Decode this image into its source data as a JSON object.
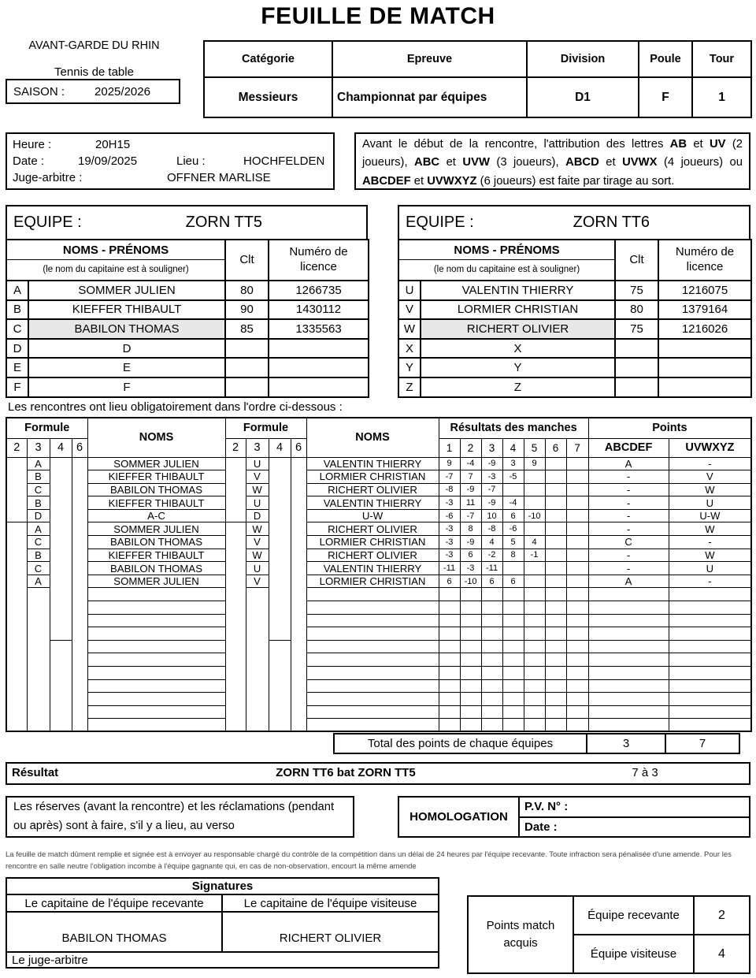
{
  "title": "FEUILLE DE MATCH",
  "club": {
    "name": "AVANT-GARDE DU RHIN",
    "sport": "Tennis de table",
    "season_label": "SAISON :",
    "season": "2025/2026"
  },
  "header_table": {
    "columns": [
      {
        "label": "Catégorie",
        "value": "Messieurs"
      },
      {
        "label": "Epreuve",
        "value": "Championnat par équipes"
      },
      {
        "label": "Division",
        "value": "D1"
      },
      {
        "label": "Poule",
        "value": "F"
      },
      {
        "label": "Tour",
        "value": "1"
      }
    ]
  },
  "info": {
    "heure_label": "Heure :",
    "heure": "20H15",
    "date_label": "Date :",
    "date": "19/09/2025",
    "lieu_label": "Lieu :",
    "lieu": "HOCHFELDEN",
    "juge_label": "Juge-arbitre :",
    "juge": "OFFNER MARLISE"
  },
  "note": {
    "parts": [
      "Avant le début de la rencontre, l'attribution des lettres ",
      "AB",
      " et ",
      "UV",
      " (2 joueurs), ",
      "ABC",
      " et ",
      "UVW",
      " (3 joueurs), ",
      "ABCD",
      " et ",
      "UVWX",
      " (4 joueurs) ou ",
      "ABCDEF",
      " et ",
      "UVWXYZ",
      " (6 joueurs) est faite par tirage au sort."
    ]
  },
  "teams": {
    "home": {
      "equipe_label": "EQUIPE :",
      "name": "ZORN TT5",
      "header": {
        "noms": "NOMS - PRÉNOMS",
        "capitaine": "(le nom du capitaine est à souligner)",
        "clt": "Clt",
        "licence": "Numéro de licence"
      },
      "players": [
        {
          "letter": "A",
          "name": "SOMMER JULIEN",
          "clt": "80",
          "licence": "1266735",
          "shaded": false
        },
        {
          "letter": "B",
          "name": "KIEFFER THIBAULT",
          "clt": "90",
          "licence": "1430112",
          "shaded": false
        },
        {
          "letter": "C",
          "name": "BABILON THOMAS",
          "clt": "85",
          "licence": "1335563",
          "shaded": true
        },
        {
          "letter": "D",
          "name": "D",
          "clt": "",
          "licence": "",
          "shaded": false
        },
        {
          "letter": "E",
          "name": "E",
          "clt": "",
          "licence": "",
          "shaded": false
        },
        {
          "letter": "F",
          "name": "F",
          "clt": "",
          "licence": "",
          "shaded": false
        }
      ]
    },
    "away": {
      "equipe_label": "EQUIPE :",
      "name": "ZORN TT6",
      "header": {
        "noms": "NOMS - PRÉNOMS",
        "capitaine": "(le nom du capitaine est à souligner)",
        "clt": "Clt",
        "licence": "Numéro de licence"
      },
      "players": [
        {
          "letter": "U",
          "name": "VALENTIN THIERRY",
          "clt": "75",
          "licence": "1216075",
          "shaded": false
        },
        {
          "letter": "V",
          "name": "LORMIER CHRISTIAN",
          "clt": "80",
          "licence": "1379164",
          "shaded": false
        },
        {
          "letter": "W",
          "name": "RICHERT OLIVIER",
          "clt": "75",
          "licence": "1216026",
          "shaded": true
        },
        {
          "letter": "X",
          "name": "X",
          "clt": "",
          "licence": "",
          "shaded": false
        },
        {
          "letter": "Y",
          "name": "Y",
          "clt": "",
          "licence": "",
          "shaded": false
        },
        {
          "letter": "Z",
          "name": "Z",
          "clt": "",
          "licence": "",
          "shaded": false
        }
      ]
    }
  },
  "order_note": "Les rencontres ont lieu obligatoirement dans l'ordre ci-dessous :",
  "match_table": {
    "formule_label": "Formule",
    "noms_label": "NOMS",
    "formule_cols": [
      "2",
      "3",
      "4",
      "6"
    ],
    "results_label": "Résultats des manches",
    "results_cols": [
      "1",
      "2",
      "3",
      "4",
      "5",
      "6",
      "7"
    ],
    "points_label": "Points",
    "points_cols": [
      "ABCDEF",
      "UVWXYZ"
    ],
    "rows": [
      {
        "l": "A",
        "home": "SOMMER JULIEN",
        "r": "U",
        "away": "VALENTIN THIERRY",
        "sets": [
          "9",
          "-4",
          "-9",
          "3",
          "9",
          "",
          ""
        ],
        "pa": "A",
        "pu": "-"
      },
      {
        "l": "B",
        "home": "KIEFFER THIBAULT",
        "r": "V",
        "away": "LORMIER CHRISTIAN",
        "sets": [
          "-7",
          "7",
          "-3",
          "-5",
          "",
          "",
          ""
        ],
        "pa": "-",
        "pu": "V"
      },
      {
        "l": "C",
        "home": "BABILON THOMAS",
        "r": "W",
        "away": "RICHERT OLIVIER",
        "sets": [
          "-8",
          "-9",
          "-7",
          "",
          "",
          "",
          ""
        ],
        "pa": "-",
        "pu": "W"
      },
      {
        "l": "B",
        "home": "KIEFFER THIBAULT",
        "r": "U",
        "away": "VALENTIN THIERRY",
        "sets": [
          "-3",
          "11",
          "-9",
          "-4",
          "",
          "",
          ""
        ],
        "pa": "-",
        "pu": "U"
      },
      {
        "l": "D",
        "home": "A-C",
        "r": "D",
        "away": "U-W",
        "sets": [
          "-6",
          "-7",
          "10",
          "6",
          "-10",
          "",
          ""
        ],
        "pa": "-",
        "pu": "U-W"
      },
      {
        "l": "A",
        "home": "SOMMER JULIEN",
        "r": "W",
        "away": "RICHERT OLIVIER",
        "sets": [
          "-3",
          "8",
          "-8",
          "-6",
          "",
          "",
          ""
        ],
        "pa": "-",
        "pu": "W"
      },
      {
        "l": "C",
        "home": "BABILON THOMAS",
        "r": "V",
        "away": "LORMIER CHRISTIAN",
        "sets": [
          "-3",
          "-9",
          "4",
          "5",
          "4",
          "",
          ""
        ],
        "pa": "C",
        "pu": "-"
      },
      {
        "l": "B",
        "home": "KIEFFER THIBAULT",
        "r": "W",
        "away": "RICHERT OLIVIER",
        "sets": [
          "-3",
          "6",
          "-2",
          "8",
          "-1",
          "",
          ""
        ],
        "pa": "-",
        "pu": "W"
      },
      {
        "l": "C",
        "home": "BABILON THOMAS",
        "r": "U",
        "away": "VALENTIN THIERRY",
        "sets": [
          "-11",
          "-3",
          "-11",
          "",
          "",
          "",
          ""
        ],
        "pa": "-",
        "pu": "U"
      },
      {
        "l": "A",
        "home": "SOMMER JULIEN",
        "r": "V",
        "away": "LORMIER CHRISTIAN",
        "sets": [
          "6",
          "-10",
          "6",
          "6",
          "",
          "",
          ""
        ],
        "pa": "A",
        "pu": "-"
      }
    ],
    "empty_rows": 11,
    "total_label": "Total des points de chaque équipes",
    "total_home": "3",
    "total_away": "7"
  },
  "result_bar": {
    "label": "Résultat",
    "text": "ZORN TT6 bat ZORN TT5",
    "score": "7 à 3"
  },
  "reserves_text": "Les réserves (avant la rencontre) et les réclamations (pendant ou après) sont à faire, s'il y a lieu, au verso",
  "homologation": {
    "label": "HOMOLOGATION",
    "pv": "P.V. N° :",
    "date": "Date :"
  },
  "fine_print": "La feuille de match dûment remplie et signée est à envoyer au responsable chargé du contrôle de la compétition dans un délai de 24 heures par l'équipe recevante. Toute infraction sera pénalisée d'une amende. Pour les rencontre en salle neutre l'obligation incombe à l'équipe gagnante qui, en cas de non-observation, encourt la même amende",
  "signatures": {
    "title": "Signatures",
    "home_label": "Le capitaine de l'équipe recevante",
    "away_label": "Le capitaine de l'équipe visiteuse",
    "home_name": "BABILON THOMAS",
    "away_name": "RICHERT OLIVIER",
    "judge_label": "Le juge-arbitre"
  },
  "points_match": {
    "label": "Points match acquis",
    "home_label": "Équipe recevante",
    "home_value": "2",
    "away_label": "Équipe visiteuse",
    "away_value": "4"
  }
}
